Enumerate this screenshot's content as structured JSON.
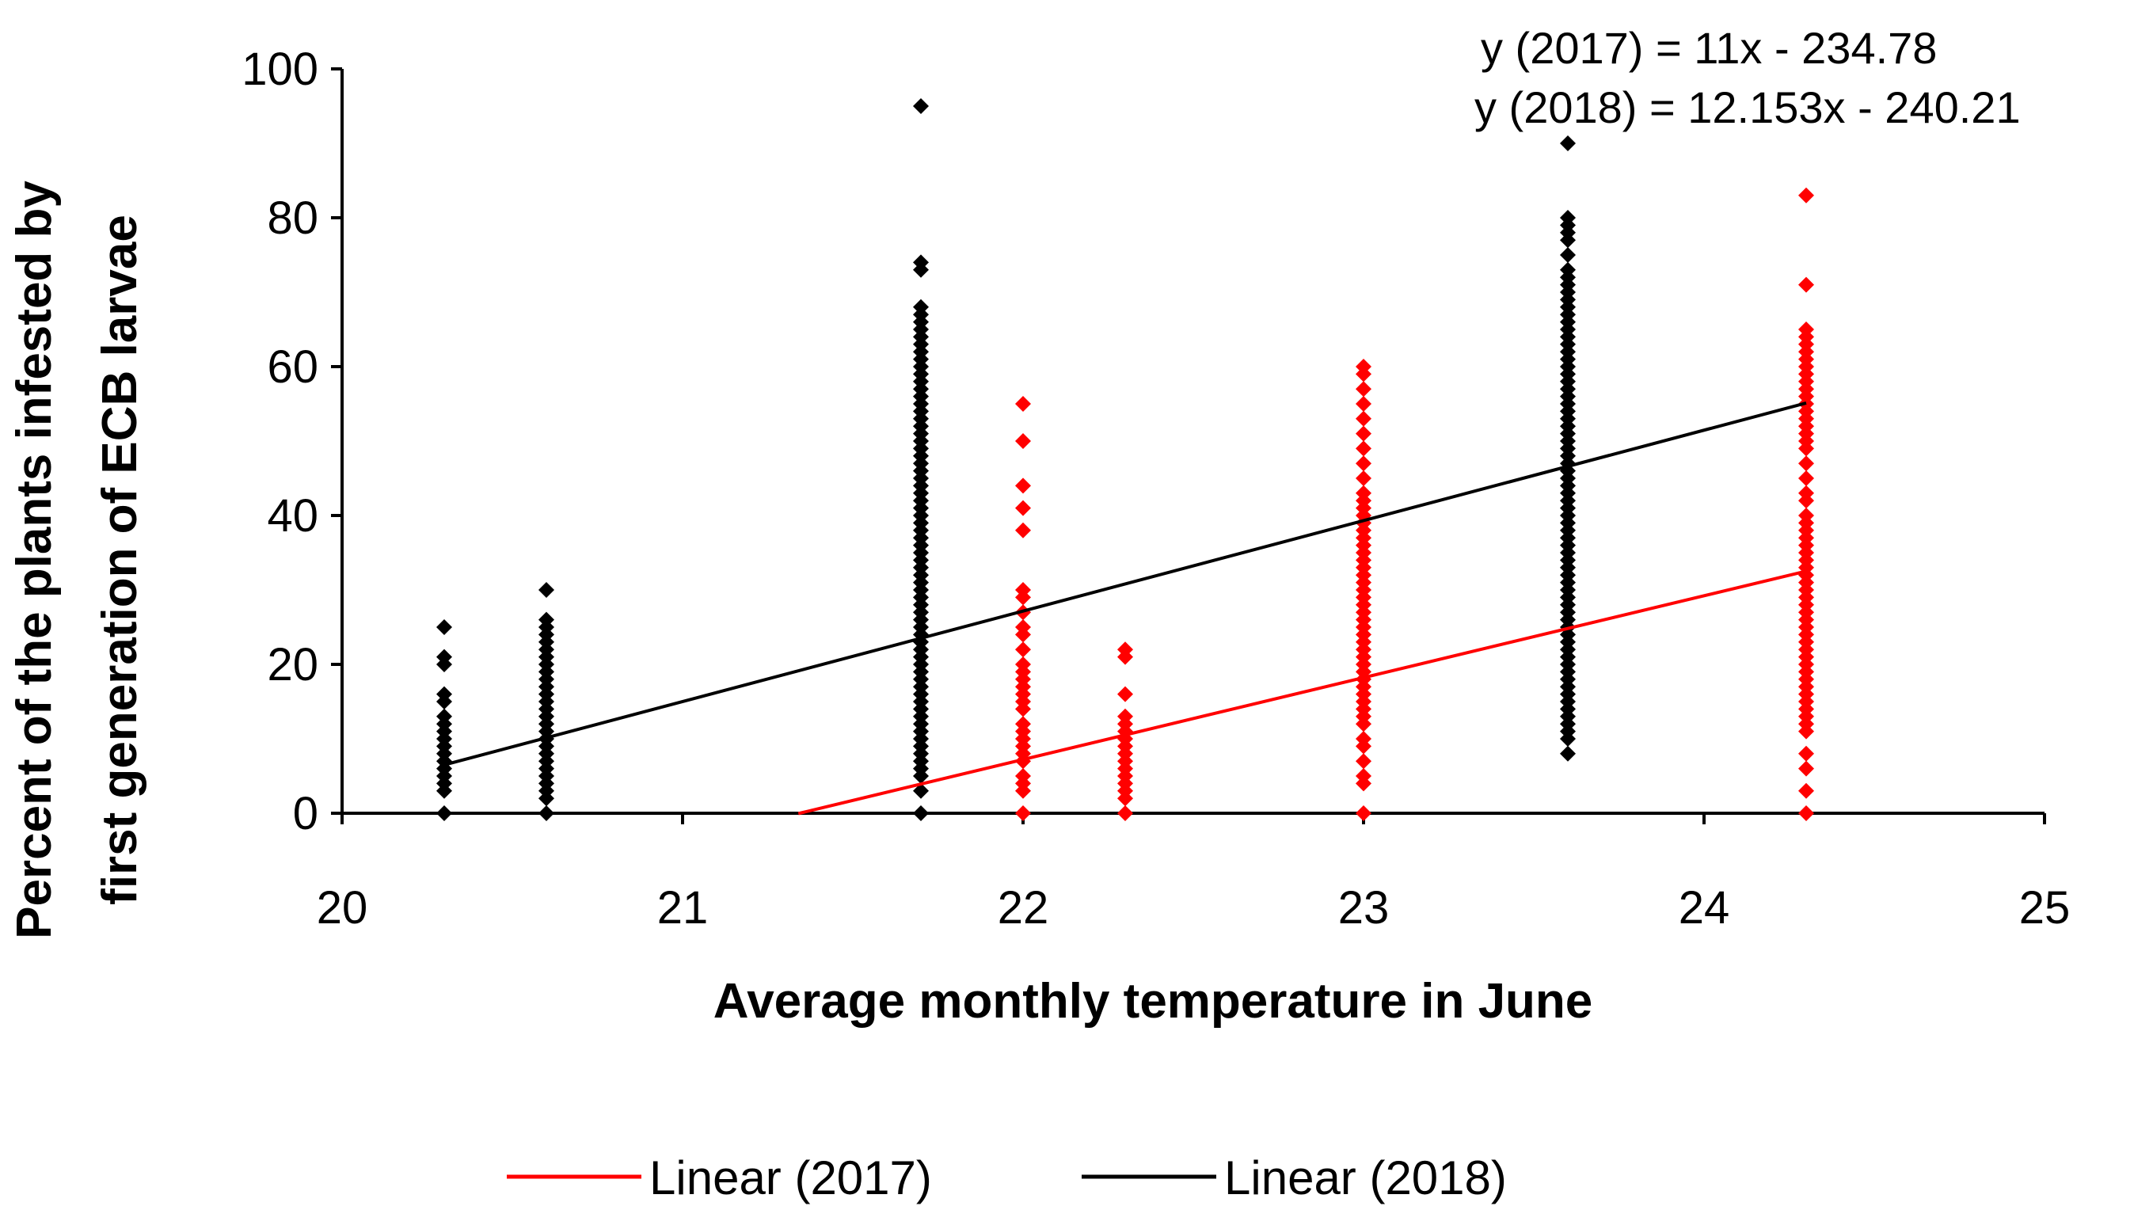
{
  "chart_data": {
    "type": "scatter",
    "title": "",
    "xlabel": "Average monthly temperature in June",
    "ylabel_lines": [
      "Percent of the plants infested by",
      "first generation of ECB larvae"
    ],
    "xlim": [
      20,
      25
    ],
    "ylim": [
      0,
      100
    ],
    "x_ticks": [
      20,
      21,
      22,
      23,
      24,
      25
    ],
    "y_ticks": [
      0,
      20,
      40,
      60,
      80,
      100
    ],
    "x_tick_labels": [
      "20",
      "21",
      "22",
      "23",
      "24",
      "25"
    ],
    "y_tick_labels": [
      "0",
      "20",
      "40",
      "60",
      "80",
      "100"
    ],
    "grid": false,
    "series": [
      {
        "name": "2017",
        "color": "#ff0000",
        "groups": [
          {
            "x": 22.0,
            "y": [
              0,
              3,
              4,
              5,
              7,
              8,
              9,
              10,
              11,
              12,
              14,
              15,
              16,
              17,
              18,
              19,
              20,
              22,
              24,
              25,
              27,
              29,
              30,
              38,
              41,
              44,
              50,
              55
            ]
          },
          {
            "x": 22.3,
            "y": [
              0,
              2,
              3,
              4,
              5,
              6,
              7,
              8,
              9,
              10,
              11,
              12,
              13,
              16,
              21,
              22
            ]
          },
          {
            "x": 23.0,
            "y": [
              0,
              4,
              5,
              7,
              9,
              10,
              12,
              13,
              14,
              15,
              16,
              17,
              18,
              19,
              20,
              21,
              22,
              23,
              24,
              25,
              26,
              27,
              28,
              29,
              30,
              31,
              32,
              33,
              34,
              35,
              36,
              37,
              38,
              39,
              40,
              41,
              42,
              43,
              45,
              47,
              49,
              51,
              53,
              55,
              57,
              59,
              60
            ]
          },
          {
            "x": 24.3,
            "y": [
              0,
              3,
              6,
              8,
              11,
              12,
              13,
              14,
              15,
              16,
              17,
              18,
              19,
              20,
              21,
              22,
              23,
              24,
              25,
              26,
              27,
              28,
              29,
              30,
              31,
              32,
              33,
              34,
              35,
              36,
              37,
              38,
              39,
              40,
              42,
              43,
              45,
              47,
              49,
              50,
              51,
              52,
              53,
              54,
              55,
              56,
              57,
              58,
              59,
              60,
              61,
              62,
              63,
              64,
              65,
              71,
              83
            ]
          }
        ]
      },
      {
        "name": "2018",
        "color": "#000000",
        "groups": [
          {
            "x": 20.3,
            "y": [
              0,
              3,
              4,
              5,
              6,
              7,
              8,
              9,
              10,
              11,
              12,
              13,
              15,
              16,
              20,
              21,
              25
            ]
          },
          {
            "x": 20.6,
            "y": [
              0,
              2,
              3,
              4,
              5,
              6,
              7,
              8,
              9,
              10,
              11,
              12,
              13,
              14,
              15,
              16,
              17,
              18,
              19,
              20,
              21,
              22,
              23,
              24,
              25,
              26,
              30
            ]
          },
          {
            "x": 21.7,
            "y": [
              0,
              3,
              5,
              6,
              7,
              8,
              9,
              10,
              11,
              12,
              13,
              14,
              15,
              16,
              17,
              18,
              19,
              20,
              21,
              22,
              23,
              24,
              25,
              26,
              27,
              28,
              29,
              30,
              31,
              32,
              33,
              34,
              35,
              36,
              37,
              38,
              39,
              40,
              41,
              42,
              43,
              44,
              45,
              46,
              47,
              48,
              49,
              50,
              51,
              52,
              53,
              54,
              55,
              56,
              57,
              58,
              59,
              60,
              61,
              62,
              63,
              64,
              65,
              66,
              67,
              68,
              73,
              74,
              95
            ]
          },
          {
            "x": 23.6,
            "y": [
              8,
              10,
              11,
              12,
              13,
              14,
              15,
              16,
              17,
              18,
              19,
              20,
              21,
              22,
              23,
              24,
              25,
              26,
              27,
              28,
              29,
              30,
              31,
              32,
              33,
              34,
              35,
              36,
              37,
              38,
              39,
              40,
              41,
              42,
              43,
              44,
              45,
              46,
              47,
              48,
              49,
              50,
              51,
              52,
              53,
              54,
              55,
              56,
              57,
              58,
              59,
              60,
              61,
              62,
              63,
              64,
              65,
              66,
              67,
              68,
              69,
              70,
              71,
              72,
              73,
              75,
              77,
              78,
              79,
              80,
              90
            ]
          }
        ]
      }
    ],
    "trendlines": [
      {
        "name": "Linear (2017)",
        "color": "#ff0000",
        "slope": 11,
        "intercept": -234.78,
        "x_from": 21.34,
        "x_to": 24.3
      },
      {
        "name": "Linear (2018)",
        "color": "#000000",
        "slope": 12.153,
        "intercept": -240.21,
        "x_from": 20.3,
        "x_to": 24.3
      }
    ],
    "equations": [
      "y (2017) = 11x - 234.78",
      "y (2018) = 12.153x - 240.21"
    ],
    "legend": {
      "position": "bottom",
      "entries": [
        {
          "label": "Linear (2017)",
          "color": "#ff0000"
        },
        {
          "label": "Linear (2018)",
          "color": "#000000"
        }
      ]
    }
  }
}
